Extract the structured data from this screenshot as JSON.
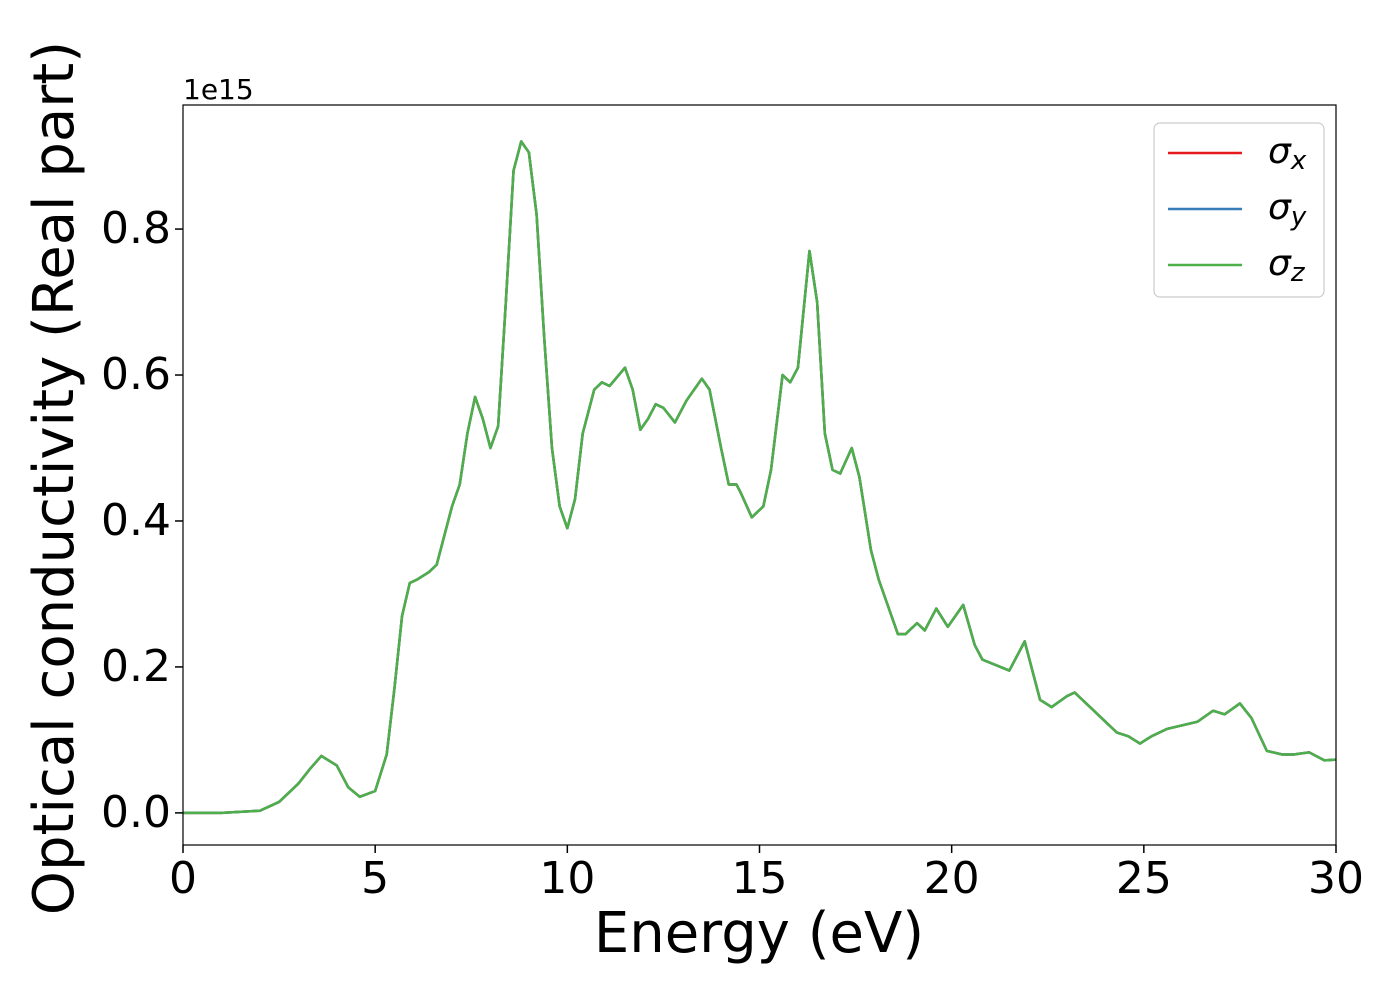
{
  "chart_data": {
    "type": "line",
    "xlabel": "Energy (eV)",
    "ylabel": "Optical conductivity (Real part)",
    "y_offset_label": "1e15",
    "x": [
      0,
      1,
      2,
      2.5,
      3,
      3.3,
      3.6,
      4,
      4.3,
      4.6,
      5,
      5.3,
      5.5,
      5.7,
      5.9,
      6.1,
      6.4,
      6.6,
      6.8,
      7,
      7.2,
      7.4,
      7.6,
      7.8,
      8,
      8.2,
      8.4,
      8.6,
      8.8,
      9.0,
      9.2,
      9.4,
      9.6,
      9.8,
      10,
      10.2,
      10.4,
      10.7,
      10.9,
      11.1,
      11.5,
      11.7,
      11.9,
      12.1,
      12.3,
      12.5,
      12.8,
      13.1,
      13.5,
      13.7,
      14,
      14.2,
      14.4,
      14.5,
      14.8,
      15.1,
      15.3,
      15.6,
      15.8,
      16,
      16.3,
      16.5,
      16.7,
      16.9,
      17.1,
      17.4,
      17.6,
      17.9,
      18.1,
      18.3,
      18.6,
      18.8,
      19.1,
      19.3,
      19.6,
      19.9,
      20.3,
      20.6,
      20.8,
      21.5,
      21.9,
      22.3,
      22.6,
      23,
      23.2,
      23.6,
      24,
      24.3,
      24.6,
      24.9,
      25.2,
      25.6,
      26,
      26.4,
      26.8,
      27.1,
      27.5,
      27.8,
      28.2,
      28.6,
      28.9,
      29.3,
      29.7,
      30
    ],
    "series": [
      {
        "name": "σx",
        "color": "#e41a1c",
        "values": [
          0,
          0,
          0.003,
          0.015,
          0.04,
          0.06,
          0.078,
          0.065,
          0.035,
          0.022,
          0.03,
          0.08,
          0.17,
          0.27,
          0.315,
          0.32,
          0.33,
          0.34,
          0.38,
          0.42,
          0.45,
          0.52,
          0.57,
          0.54,
          0.5,
          0.53,
          0.7,
          0.88,
          0.92,
          0.905,
          0.82,
          0.65,
          0.5,
          0.42,
          0.39,
          0.43,
          0.52,
          0.58,
          0.59,
          0.585,
          0.61,
          0.58,
          0.525,
          0.54,
          0.56,
          0.555,
          0.535,
          0.565,
          0.595,
          0.58,
          0.5,
          0.45,
          0.45,
          0.44,
          0.405,
          0.42,
          0.47,
          0.6,
          0.59,
          0.61,
          0.77,
          0.7,
          0.52,
          0.47,
          0.465,
          0.5,
          0.46,
          0.36,
          0.32,
          0.29,
          0.245,
          0.245,
          0.26,
          0.25,
          0.28,
          0.255,
          0.285,
          0.23,
          0.21,
          0.195,
          0.235,
          0.155,
          0.145,
          0.16,
          0.165,
          0.145,
          0.125,
          0.11,
          0.105,
          0.095,
          0.105,
          0.115,
          0.12,
          0.125,
          0.14,
          0.135,
          0.15,
          0.13,
          0.085,
          0.08,
          0.08,
          0.083,
          0.072,
          0.073
        ]
      },
      {
        "name": "σy",
        "color": "#377eb8",
        "values": [
          0,
          0,
          0.003,
          0.015,
          0.04,
          0.06,
          0.078,
          0.065,
          0.035,
          0.022,
          0.03,
          0.08,
          0.17,
          0.27,
          0.315,
          0.32,
          0.33,
          0.34,
          0.38,
          0.42,
          0.45,
          0.52,
          0.57,
          0.54,
          0.5,
          0.53,
          0.7,
          0.88,
          0.92,
          0.905,
          0.82,
          0.65,
          0.5,
          0.42,
          0.39,
          0.43,
          0.52,
          0.58,
          0.59,
          0.585,
          0.61,
          0.58,
          0.525,
          0.54,
          0.56,
          0.555,
          0.535,
          0.565,
          0.595,
          0.58,
          0.5,
          0.45,
          0.45,
          0.44,
          0.405,
          0.42,
          0.47,
          0.6,
          0.59,
          0.61,
          0.77,
          0.7,
          0.52,
          0.47,
          0.465,
          0.5,
          0.46,
          0.36,
          0.32,
          0.29,
          0.245,
          0.245,
          0.26,
          0.25,
          0.28,
          0.255,
          0.285,
          0.23,
          0.21,
          0.195,
          0.235,
          0.155,
          0.145,
          0.16,
          0.165,
          0.145,
          0.125,
          0.11,
          0.105,
          0.095,
          0.105,
          0.115,
          0.12,
          0.125,
          0.14,
          0.135,
          0.15,
          0.13,
          0.085,
          0.08,
          0.08,
          0.083,
          0.072,
          0.073
        ]
      },
      {
        "name": "σz",
        "color": "#4daf4a",
        "values": [
          0,
          0,
          0.003,
          0.015,
          0.04,
          0.06,
          0.078,
          0.065,
          0.035,
          0.022,
          0.03,
          0.08,
          0.17,
          0.27,
          0.315,
          0.32,
          0.33,
          0.34,
          0.38,
          0.42,
          0.45,
          0.52,
          0.57,
          0.54,
          0.5,
          0.53,
          0.7,
          0.88,
          0.92,
          0.905,
          0.82,
          0.65,
          0.5,
          0.42,
          0.39,
          0.43,
          0.52,
          0.58,
          0.59,
          0.585,
          0.61,
          0.58,
          0.525,
          0.54,
          0.56,
          0.555,
          0.535,
          0.565,
          0.595,
          0.58,
          0.5,
          0.45,
          0.45,
          0.44,
          0.405,
          0.42,
          0.47,
          0.6,
          0.59,
          0.61,
          0.77,
          0.7,
          0.52,
          0.47,
          0.465,
          0.5,
          0.46,
          0.36,
          0.32,
          0.29,
          0.245,
          0.245,
          0.26,
          0.25,
          0.28,
          0.255,
          0.285,
          0.23,
          0.21,
          0.195,
          0.235,
          0.155,
          0.145,
          0.16,
          0.165,
          0.145,
          0.125,
          0.11,
          0.105,
          0.095,
          0.105,
          0.115,
          0.12,
          0.125,
          0.14,
          0.135,
          0.15,
          0.13,
          0.085,
          0.08,
          0.08,
          0.083,
          0.072,
          0.073
        ]
      }
    ],
    "xlim": [
      0,
      30
    ],
    "xticks": [
      0,
      5,
      10,
      15,
      20,
      25,
      30
    ],
    "ylim": [
      -0.044,
      0.97
    ],
    "yticks": [
      {
        "value": 0,
        "label": "0.0"
      },
      0.2,
      0.4,
      0.6,
      0.8
    ],
    "grid": false,
    "legend": "upper right"
  }
}
